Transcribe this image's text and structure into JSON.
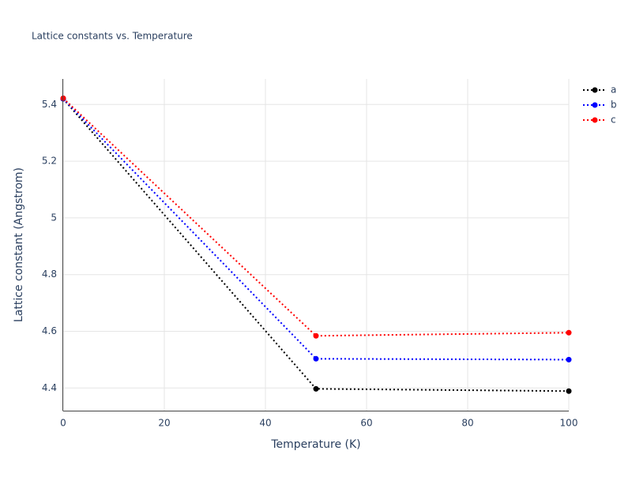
{
  "chart_data": {
    "type": "line",
    "title": "Lattice constants vs. Temperature",
    "x_label": "Temperature (K)",
    "y_label": "Lattice constant (Angstrom)",
    "x": [
      0,
      50,
      100
    ],
    "series": [
      {
        "name": "a",
        "color": "#000000",
        "values": [
          5.42,
          4.397,
          4.389
        ]
      },
      {
        "name": "b",
        "color": "#0000ff",
        "values": [
          5.42,
          4.503,
          4.5
        ]
      },
      {
        "name": "c",
        "color": "#ff0000",
        "values": [
          5.422,
          4.584,
          4.595
        ]
      }
    ],
    "xlim": [
      0,
      100
    ],
    "xticks": [
      0,
      20,
      40,
      60,
      80,
      100
    ],
    "ylim": [
      4.32,
      5.49
    ],
    "yticks": [
      4.4,
      4.6,
      4.8,
      5,
      5.2,
      5.4
    ],
    "grid": true,
    "legend": "top-right"
  }
}
